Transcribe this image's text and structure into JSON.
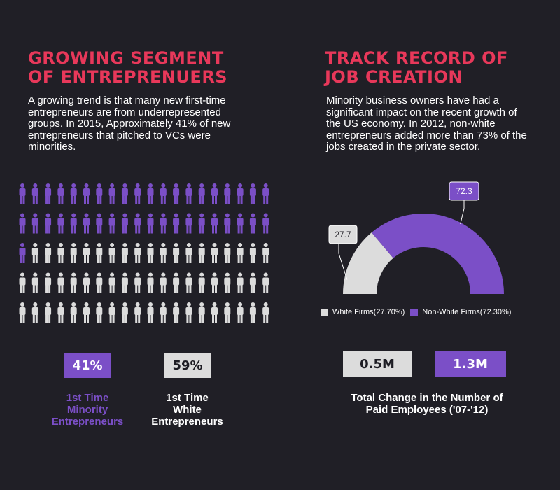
{
  "left": {
    "heading": "GROWING SEGMENT\nOF ENTREPRENUERS",
    "paragraph": "A growing trend is that many new first-time entrepreneurs are from underrepresented groups. In 2015, Approximately 41% of new entrepreneurs that pitched to VCs were minorities.",
    "stats": {
      "minority_value": "41%",
      "minority_label": "1st Time\nMinority\nEntrepreneurs",
      "white_value": "59%",
      "white_label": "1st Time\nWhite\nEntrepreneurs"
    }
  },
  "right": {
    "heading": "TRACK RECORD OF\nJOB CREATION",
    "paragraph": "Minority business owners have had a significant impact on the recent growth of the US economy. In 2012, non-white entrepreneurs added more than 73% of the jobs created in the private sector.",
    "employees": {
      "white_value": "0.5M",
      "nonwhite_value": "1.3M",
      "caption": "Total Change in the Number of\nPaid Employees ('07-'12)"
    }
  },
  "colors": {
    "accent_red": "#e8385a",
    "purple": "#7b4fc7",
    "light_gray": "#dcdcdc",
    "background": "#201f26"
  },
  "chart_data": [
    {
      "type": "pictogram",
      "total_icons": 100,
      "rows": 5,
      "columns": 20,
      "series": [
        {
          "name": "1st Time Minority Entrepreneurs",
          "count": 41,
          "color": "#7b4fc7"
        },
        {
          "name": "1st Time White Entrepreneurs",
          "count": 59,
          "color": "#dcdcdc"
        }
      ]
    },
    {
      "type": "pie",
      "style": "half-donut",
      "categories": [
        "White Firms(27.70%)",
        "Non-White Firms(72.30%)"
      ],
      "values": [
        27.7,
        72.3
      ],
      "data_labels": [
        "27.7",
        "72.3"
      ],
      "colors": [
        "#dcdcdc",
        "#7b4fc7"
      ],
      "legend": "bottom"
    }
  ]
}
